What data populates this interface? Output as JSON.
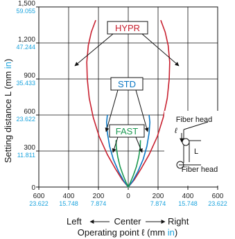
{
  "chart_data": {
    "type": "line",
    "x_unit_label": "Operating point ℓ (mm in)",
    "y_unit_label": "Setting distance L (mm in)",
    "x_axis": {
      "range": [
        -600,
        600
      ],
      "ticks": [
        {
          "value": -600,
          "mm": "600",
          "in": "23.622"
        },
        {
          "value": -400,
          "mm": "400",
          "in": "15.748"
        },
        {
          "value": -200,
          "mm": "200",
          "in": "7.874"
        },
        {
          "value": 0,
          "mm": "0",
          "in": ""
        },
        {
          "value": 200,
          "mm": "200",
          "in": "7.874"
        },
        {
          "value": 400,
          "mm": "400",
          "in": "15.748"
        },
        {
          "value": 600,
          "mm": "600",
          "in": "23.622"
        }
      ]
    },
    "y_axis": {
      "range": [
        0,
        1500
      ],
      "ticks": [
        {
          "value": 0,
          "mm": "0",
          "in": ""
        },
        {
          "value": 300,
          "mm": "300",
          "in": "11.811"
        },
        {
          "value": 600,
          "mm": "600",
          "in": "23.622"
        },
        {
          "value": 900,
          "mm": "900",
          "in": "35.433"
        },
        {
          "value": 1200,
          "mm": "1,200",
          "in": "47.244"
        },
        {
          "value": 1500,
          "mm": "1,500",
          "in": "59.055"
        }
      ]
    },
    "grid": true,
    "direction_labels": {
      "left": "Left",
      "center": "Center",
      "right": "Right"
    },
    "series": [
      {
        "name": "HYPR",
        "color": "#c8202f",
        "points": [
          [
            0,
            0
          ],
          [
            40,
            60
          ],
          [
            85,
            150
          ],
          [
            140,
            270
          ],
          [
            195,
            420
          ],
          [
            235,
            580
          ],
          [
            262,
            740
          ],
          [
            275,
            900
          ],
          [
            278,
            1040
          ],
          [
            268,
            1180
          ],
          [
            248,
            1290
          ],
          [
            218,
            1390
          ]
        ]
      },
      {
        "name": "STD",
        "color": "#0a77c4",
        "points": [
          [
            0,
            0
          ],
          [
            30,
            50
          ],
          [
            65,
            130
          ],
          [
            100,
            230
          ],
          [
            125,
            340
          ],
          [
            140,
            450
          ],
          [
            145,
            540
          ],
          [
            140,
            600
          ]
        ]
      },
      {
        "name": "FAST",
        "color": "#1a9850",
        "points": [
          [
            0,
            0
          ],
          [
            15,
            40
          ],
          [
            35,
            100
          ],
          [
            55,
            170
          ],
          [
            70,
            250
          ],
          [
            80,
            330
          ],
          [
            82,
            390
          ]
        ]
      }
    ],
    "diagram": {
      "label_fiber_head": "Fiber head",
      "label_l_small": "ℓ",
      "label_L": "L"
    }
  }
}
